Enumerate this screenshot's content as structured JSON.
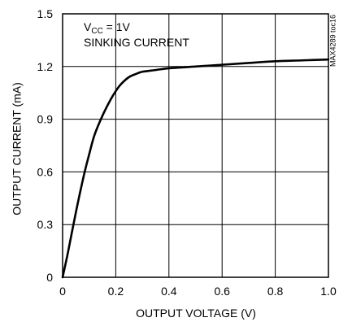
{
  "chart_data": {
    "type": "line",
    "title": "",
    "xlabel": "OUTPUT VOLTAGE (V)",
    "ylabel": "OUTPUT CURRENT (mA)",
    "xlim": [
      0,
      1.0
    ],
    "ylim": [
      0,
      1.5
    ],
    "xticks": [
      "0",
      "0.2",
      "0.4",
      "0.6",
      "0.8",
      "1.0"
    ],
    "yticks": [
      "0",
      "0.3",
      "0.6",
      "0.9",
      "1.2",
      "1.5"
    ],
    "grid": true,
    "annotation": {
      "line1_main": "V",
      "line1_sub": "CC",
      "line1_rest": " = 1V",
      "line2": "SINKING CURRENT"
    },
    "figure_id": "MAX4289 toc16",
    "series": [
      {
        "color": "#000000",
        "x": [
          0,
          0.02,
          0.05,
          0.08,
          0.1,
          0.12,
          0.15,
          0.18,
          0.2,
          0.22,
          0.25,
          0.28,
          0.3,
          0.35,
          0.4,
          0.5,
          0.6,
          0.7,
          0.8,
          0.9,
          1.0
        ],
        "y": [
          0,
          0.14,
          0.37,
          0.58,
          0.7,
          0.81,
          0.92,
          1.01,
          1.06,
          1.1,
          1.14,
          1.16,
          1.17,
          1.18,
          1.19,
          1.2,
          1.21,
          1.22,
          1.23,
          1.235,
          1.24
        ]
      }
    ]
  }
}
